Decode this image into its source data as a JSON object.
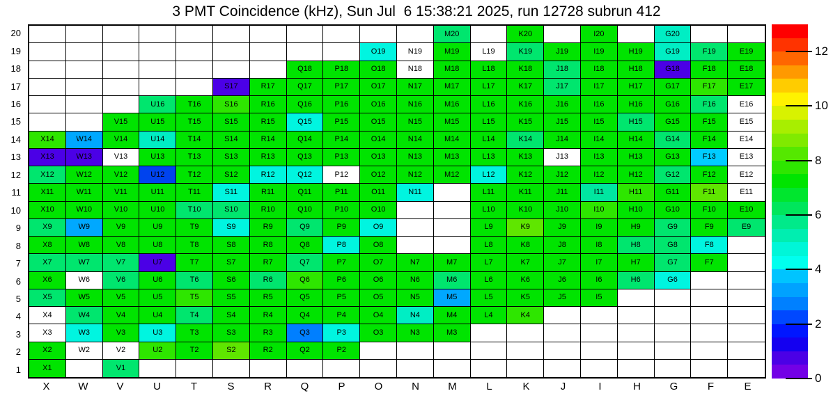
{
  "chart_data": {
    "type": "heatmap",
    "title": "3 PMT Coincidence (kHz), Sun Jul  6 15:38:21 2025, run 12728 subrun 412",
    "x_axis_labels": [
      "X",
      "W",
      "V",
      "U",
      "T",
      "S",
      "R",
      "Q",
      "P",
      "O",
      "N",
      "M",
      "L",
      "K",
      "J",
      "I",
      "H",
      "G",
      "F",
      "E"
    ],
    "y_axis_labels": [
      "20",
      "19",
      "18",
      "17",
      "16",
      "15",
      "14",
      "13",
      "12",
      "11",
      "10",
      "9",
      "8",
      "7",
      "6",
      "5",
      "4",
      "3",
      "2",
      "1"
    ],
    "colorbar": {
      "min": 0,
      "max": 13,
      "ticks": [
        12,
        10,
        8,
        6,
        4,
        2,
        0
      ],
      "band_colors": [
        "#ff0000",
        "#ff3300",
        "#ff6600",
        "#ff9900",
        "#ffcc00",
        "#fff200",
        "#d8f200",
        "#a8ee00",
        "#80ea00",
        "#55e800",
        "#2ee600",
        "#00e400",
        "#00e62e",
        "#00e65c",
        "#00ea8a",
        "#00eeb0",
        "#00f6d8",
        "#00ffee",
        "#00c4ff",
        "#00a2ff",
        "#0080ff",
        "#0048ff",
        "#0016ff",
        "#1400f0",
        "#4b00e6",
        "#7300e6"
      ]
    },
    "palette": {
      "wl": "#ffffff",
      "vb": "#4b00e6",
      "bl": "#0043ee",
      "dg": "#007fff",
      "sk": "#00a8ff",
      "lb": "#00ccff",
      "cy": "#00f5e0",
      "tq": "#00eec4",
      "tu": "#00e6a0",
      "gs": "#00e66e",
      "g": "#00e400",
      "gb": "#2ee600",
      "gc": "#5fe600"
    },
    "palette_value_estimates_khz": {
      "wl": null,
      "vb": 0.8,
      "bl": 2.3,
      "dg": 2.8,
      "sk": 3.3,
      "lb": 3.7,
      "cy": 4.3,
      "tq": 4.7,
      "tu": 5.2,
      "gs": 5.9,
      "g": 6.8,
      "gb": 7.7,
      "gc": 8.3
    },
    "cell_colors": {
      "20": {
        "M": "gs",
        "K": "g",
        "I": "g",
        "G": "tq"
      },
      "19": {
        "O": "cy",
        "N": "wl",
        "M": "g",
        "L": "wl",
        "K": "gs",
        "J": "g",
        "I": "g",
        "H": "g",
        "G": "tq",
        "F": "gs",
        "E": "g"
      },
      "18": {
        "Q": "g",
        "P": "g",
        "O": "g",
        "N": "wl",
        "M": "g",
        "L": "g",
        "K": "g",
        "J": "gs",
        "I": "g",
        "H": "g",
        "G": "vb",
        "F": "g",
        "E": "g"
      },
      "17": {
        "S": "vb",
        "R": "g",
        "Q": "g",
        "P": "g",
        "O": "g",
        "N": "g",
        "M": "g",
        "L": "g",
        "K": "g",
        "J": "gs",
        "I": "g",
        "H": "g",
        "G": "g",
        "F": "gb",
        "E": "g"
      },
      "16": {
        "U": "gs",
        "T": "g",
        "S": "gb",
        "R": "g",
        "Q": "g",
        "P": "g",
        "O": "g",
        "N": "g",
        "M": "g",
        "L": "g",
        "K": "g",
        "J": "g",
        "I": "g",
        "H": "g",
        "G": "g",
        "F": "gs",
        "E": "wl"
      },
      "15": {
        "V": "g",
        "U": "g",
        "T": "g",
        "S": "g",
        "R": "g",
        "Q": "cy",
        "P": "g",
        "O": "g",
        "N": "g",
        "M": "g",
        "L": "g",
        "K": "g",
        "J": "g",
        "I": "g",
        "H": "gs",
        "G": "g",
        "F": "g",
        "E": "wl"
      },
      "14": {
        "X": "gb",
        "W": "sk",
        "V": "g",
        "U": "tq",
        "T": "g",
        "S": "g",
        "R": "g",
        "Q": "g",
        "P": "g",
        "O": "g",
        "N": "g",
        "M": "g",
        "L": "g",
        "K": "gs",
        "J": "g",
        "I": "g",
        "H": "g",
        "G": "gs",
        "F": "g",
        "E": "wl"
      },
      "13": {
        "X": "vb",
        "W": "vb",
        "V": "wl",
        "U": "g",
        "T": "g",
        "S": "g",
        "R": "g",
        "Q": "g",
        "P": "g",
        "O": "g",
        "N": "g",
        "M": "g",
        "L": "g",
        "K": "g",
        "J": "wl",
        "I": "g",
        "H": "g",
        "G": "g",
        "F": "lb",
        "E": "wl"
      },
      "12": {
        "X": "gs",
        "W": "g",
        "V": "g",
        "U": "bl",
        "T": "g",
        "S": "g",
        "R": "cy",
        "Q": "cy",
        "P": "wl",
        "O": "g",
        "N": "g",
        "M": "g",
        "L": "cy",
        "K": "g",
        "J": "g",
        "I": "g",
        "H": "g",
        "G": "gs",
        "F": "g",
        "E": "wl"
      },
      "11": {
        "X": "g",
        "W": "g",
        "V": "g",
        "U": "g",
        "T": "g",
        "S": "cy",
        "R": "g",
        "Q": "g",
        "P": "g",
        "O": "g",
        "N": "cy",
        "L": "g",
        "K": "g",
        "J": "g",
        "I": "tu",
        "H": "gb",
        "G": "g",
        "F": "gc",
        "E": "wl"
      },
      "10": {
        "X": "g",
        "W": "g",
        "V": "g",
        "U": "g",
        "T": "gs",
        "S": "gs",
        "R": "g",
        "Q": "g",
        "P": "g",
        "O": "g",
        "L": "g",
        "K": "g",
        "J": "g",
        "I": "gb",
        "H": "g",
        "G": "g",
        "F": "g",
        "E": "g"
      },
      "9": {
        "X": "gs",
        "W": "sk",
        "V": "g",
        "U": "g",
        "T": "g",
        "S": "cy",
        "R": "g",
        "Q": "gs",
        "P": "g",
        "O": "cy",
        "L": "g",
        "K": "gc",
        "J": "g",
        "I": "g",
        "H": "g",
        "G": "gs",
        "F": "g",
        "E": "gs"
      },
      "8": {
        "X": "g",
        "W": "g",
        "V": "g",
        "U": "g",
        "T": "g",
        "S": "g",
        "R": "g",
        "Q": "g",
        "P": "cy",
        "O": "g",
        "L": "g",
        "K": "g",
        "J": "g",
        "I": "g",
        "H": "gs",
        "G": "gs",
        "F": "cy"
      },
      "7": {
        "X": "gs",
        "W": "gs",
        "V": "gs",
        "U": "vb",
        "T": "g",
        "S": "g",
        "R": "g",
        "Q": "gs",
        "P": "g",
        "O": "g",
        "N": "g",
        "M": "g",
        "L": "g",
        "K": "g",
        "J": "g",
        "I": "g",
        "H": "g",
        "G": "gs",
        "F": "g"
      },
      "6": {
        "X": "g",
        "W": "wl",
        "V": "gs",
        "U": "g",
        "T": "gs",
        "S": "g",
        "R": "gs",
        "Q": "gb",
        "P": "g",
        "O": "g",
        "N": "g",
        "M": "gs",
        "L": "g",
        "K": "g",
        "J": "g",
        "I": "g",
        "H": "gs",
        "G": "cy"
      },
      "5": {
        "X": "gs",
        "W": "g",
        "V": "g",
        "U": "g",
        "T": "gb",
        "S": "g",
        "R": "g",
        "Q": "g",
        "P": "g",
        "O": "g",
        "N": "g",
        "M": "sk",
        "L": "g",
        "K": "g",
        "J": "g",
        "I": "g"
      },
      "4": {
        "X": "wl",
        "W": "gs",
        "V": "g",
        "U": "g",
        "T": "gs",
        "S": "g",
        "R": "g",
        "Q": "g",
        "P": "g",
        "O": "g",
        "N": "tq",
        "M": "g",
        "L": "g",
        "K": "gb"
      },
      "3": {
        "X": "wl",
        "W": "cy",
        "V": "g",
        "U": "cy",
        "T": "g",
        "S": "g",
        "R": "g",
        "Q": "dg",
        "P": "cy",
        "O": "g",
        "N": "g",
        "M": "g"
      },
      "2": {
        "X": "g",
        "W": "wl",
        "V": "wl",
        "U": "gb",
        "T": "g",
        "S": "gc",
        "R": "g",
        "Q": "g",
        "P": "g"
      },
      "1": {
        "X": "g",
        "V": "gs"
      }
    }
  }
}
